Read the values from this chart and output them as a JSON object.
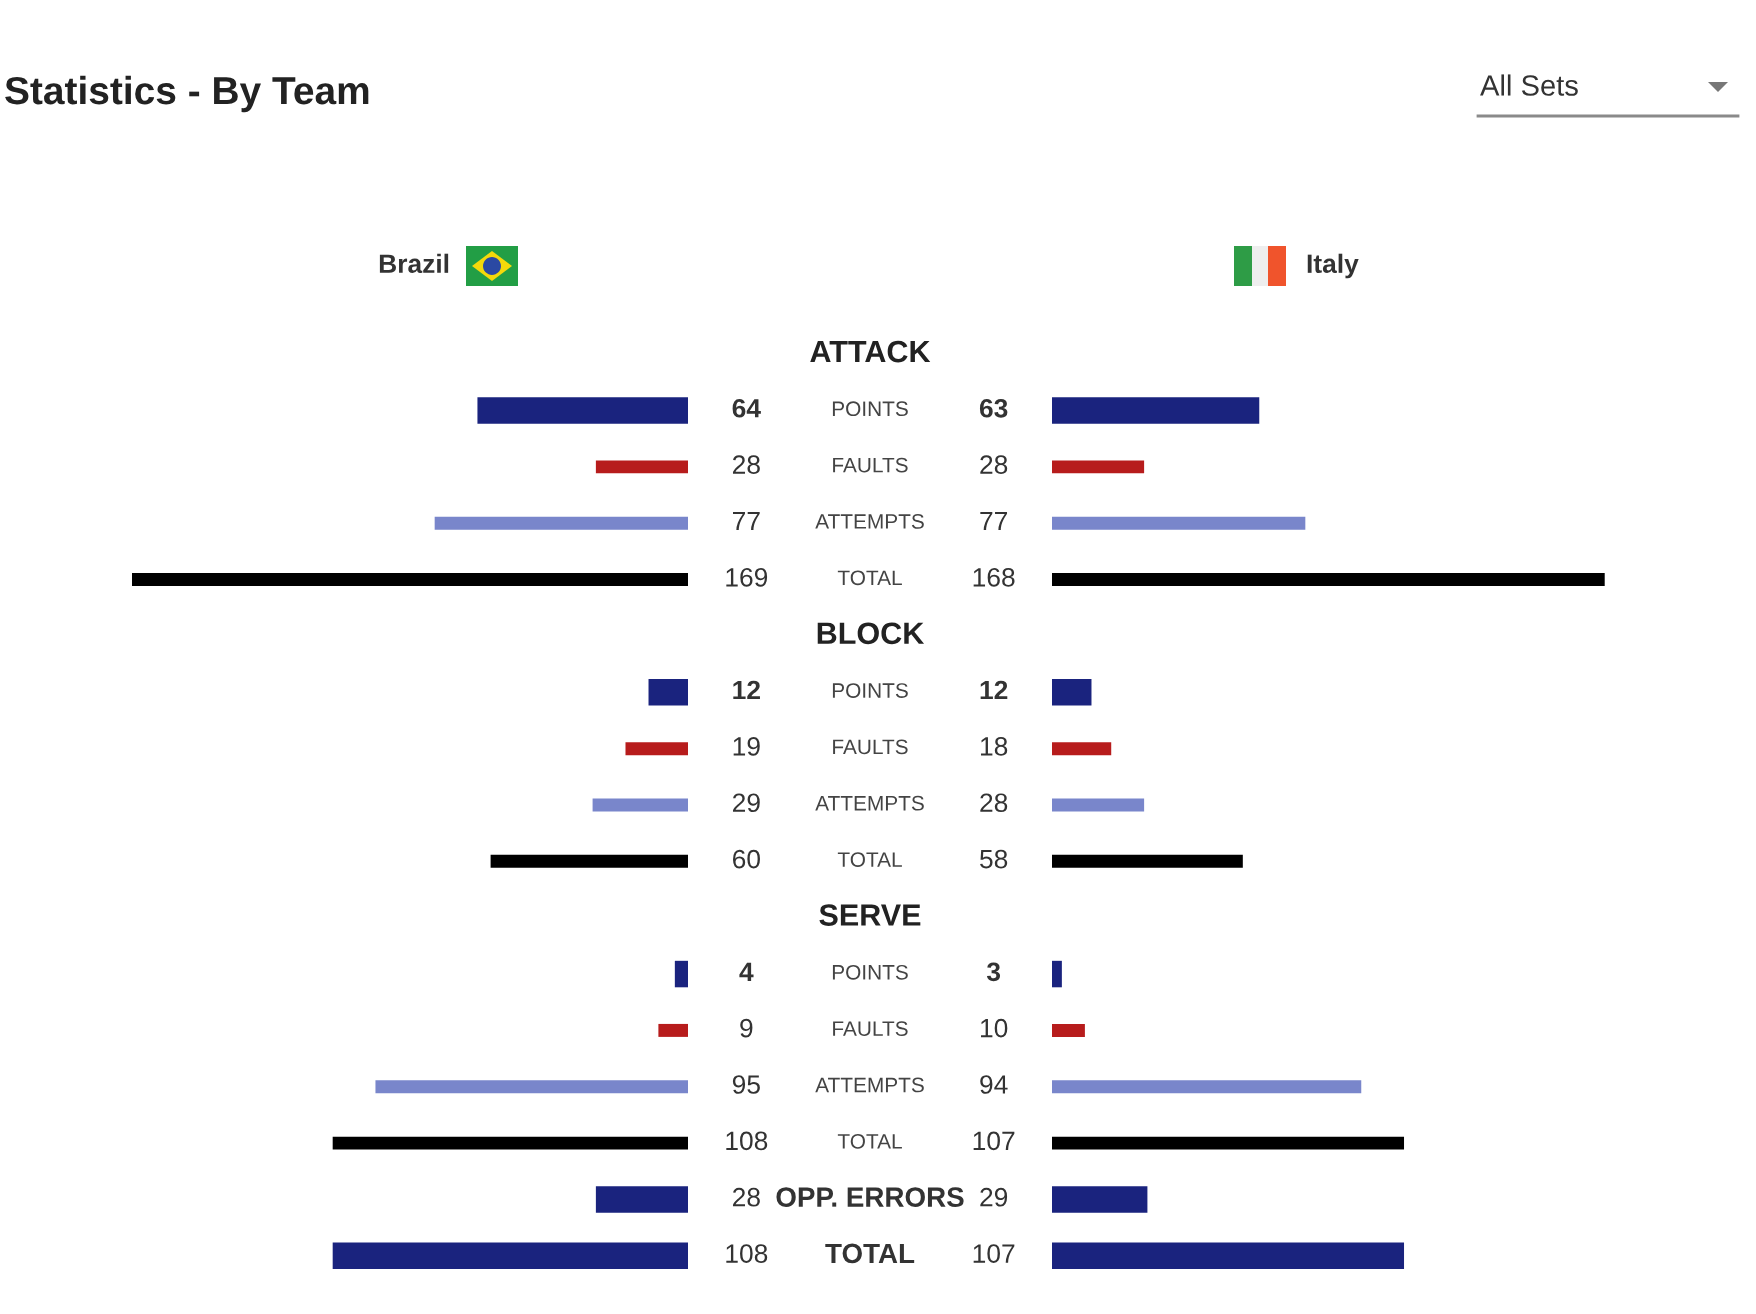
{
  "chart_data": [
    {
      "type": "bar",
      "orientation": "horizontal",
      "title": "Statistics - By Team",
      "annotations": [
        "All Sets"
      ],
      "categories": [
        "ATTACK",
        "POINTS",
        "FAULTS",
        "ATTEMPTS",
        "TOTAL",
        "BLOCK",
        "POINTS",
        "FAULTS",
        "ATTEMPTS",
        "TOTAL",
        "SERVE",
        "POINTS",
        "FAULTS",
        "ATTEMPTS",
        "TOTAL",
        "OPP. ERRORS",
        "TOTAL"
      ],
      "colors": [
        null,
        "#1a237e",
        "#b71c1c",
        "#7986cb",
        "#000000",
        null,
        "#1a237e",
        "#b71c1c",
        "#7986cb",
        "#000000",
        null,
        "#1a237e",
        "#b71c1c",
        "#7986cb",
        "#000000",
        "#1a237e",
        "#1a237e"
      ],
      "series": [
        {
          "name": "Brazil",
          "values": [
            null,
            64,
            28,
            77,
            169,
            null,
            12,
            19,
            29,
            60,
            null,
            4,
            9,
            95,
            108,
            28,
            108
          ]
        }
      ],
      "data_labels": true,
      "tick_labels": "y"
    },
    {
      "type": "bar",
      "orientation": "horizontal",
      "categories": [
        null,
        null,
        null,
        null,
        null,
        null,
        null,
        null,
        null,
        null,
        null,
        null,
        null,
        null,
        null,
        null,
        null
      ],
      "colors": [
        null,
        "#1a237e",
        "#b71c1c",
        "#7986cb",
        "#000000",
        null,
        "#1a237e",
        "#b71c1c",
        "#7986cb",
        "#000000",
        null,
        "#1a237e",
        "#b71c1c",
        "#7986cb",
        "#000000",
        "#1a237e",
        "#1a237e"
      ],
      "series": [
        {
          "name": "Italy",
          "values": [
            null,
            63,
            28,
            77,
            168,
            null,
            12,
            18,
            28,
            58,
            null,
            3,
            10,
            94,
            107,
            29,
            107
          ]
        }
      ],
      "data_labels": true,
      "tick_labels": false
    }
  ]
}
